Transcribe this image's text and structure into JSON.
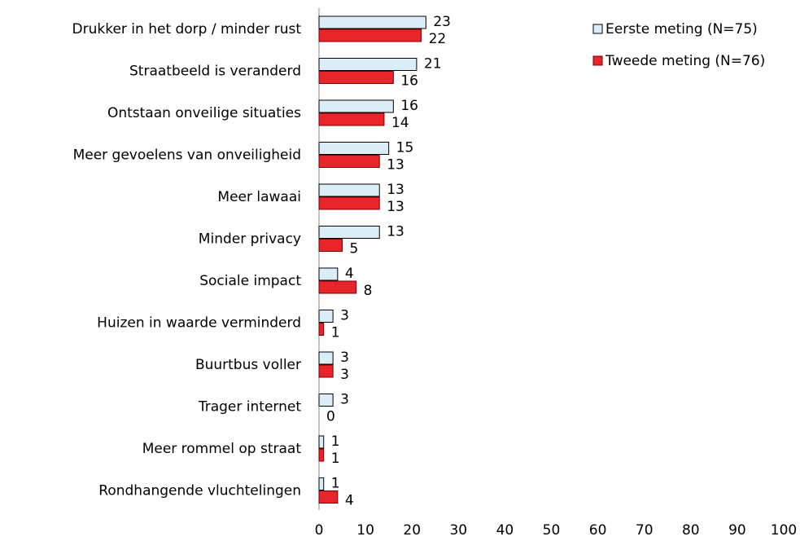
{
  "chart_data": {
    "type": "barh",
    "categories": [
      "Drukker in het dorp / minder rust",
      "Straatbeeld is veranderd",
      "Ontstaan onveilige situaties",
      "Meer gevoelens van onveiligheid",
      "Meer lawaai",
      "Minder privacy",
      "Sociale impact",
      "Huizen in waarde verminderd",
      "Buurtbus voller",
      "Trager internet",
      "Meer rommel op straat",
      "Rondhangende vluchtelingen"
    ],
    "series": [
      {
        "name": "Eerste meting (N=75)",
        "color": "#dbeef8",
        "values": [
          23,
          21,
          16,
          15,
          13,
          13,
          4,
          3,
          3,
          3,
          1,
          1
        ]
      },
      {
        "name": "Tweede meting (N=76)",
        "color": "#e8252a",
        "values": [
          22,
          16,
          14,
          13,
          13,
          5,
          8,
          1,
          3,
          0,
          1,
          4
        ]
      }
    ],
    "xlim": [
      0,
      100
    ],
    "xticks": [
      0,
      10,
      20,
      30,
      40,
      50,
      60,
      70,
      80,
      90,
      100
    ],
    "legend": "top-right",
    "grid": false
  }
}
